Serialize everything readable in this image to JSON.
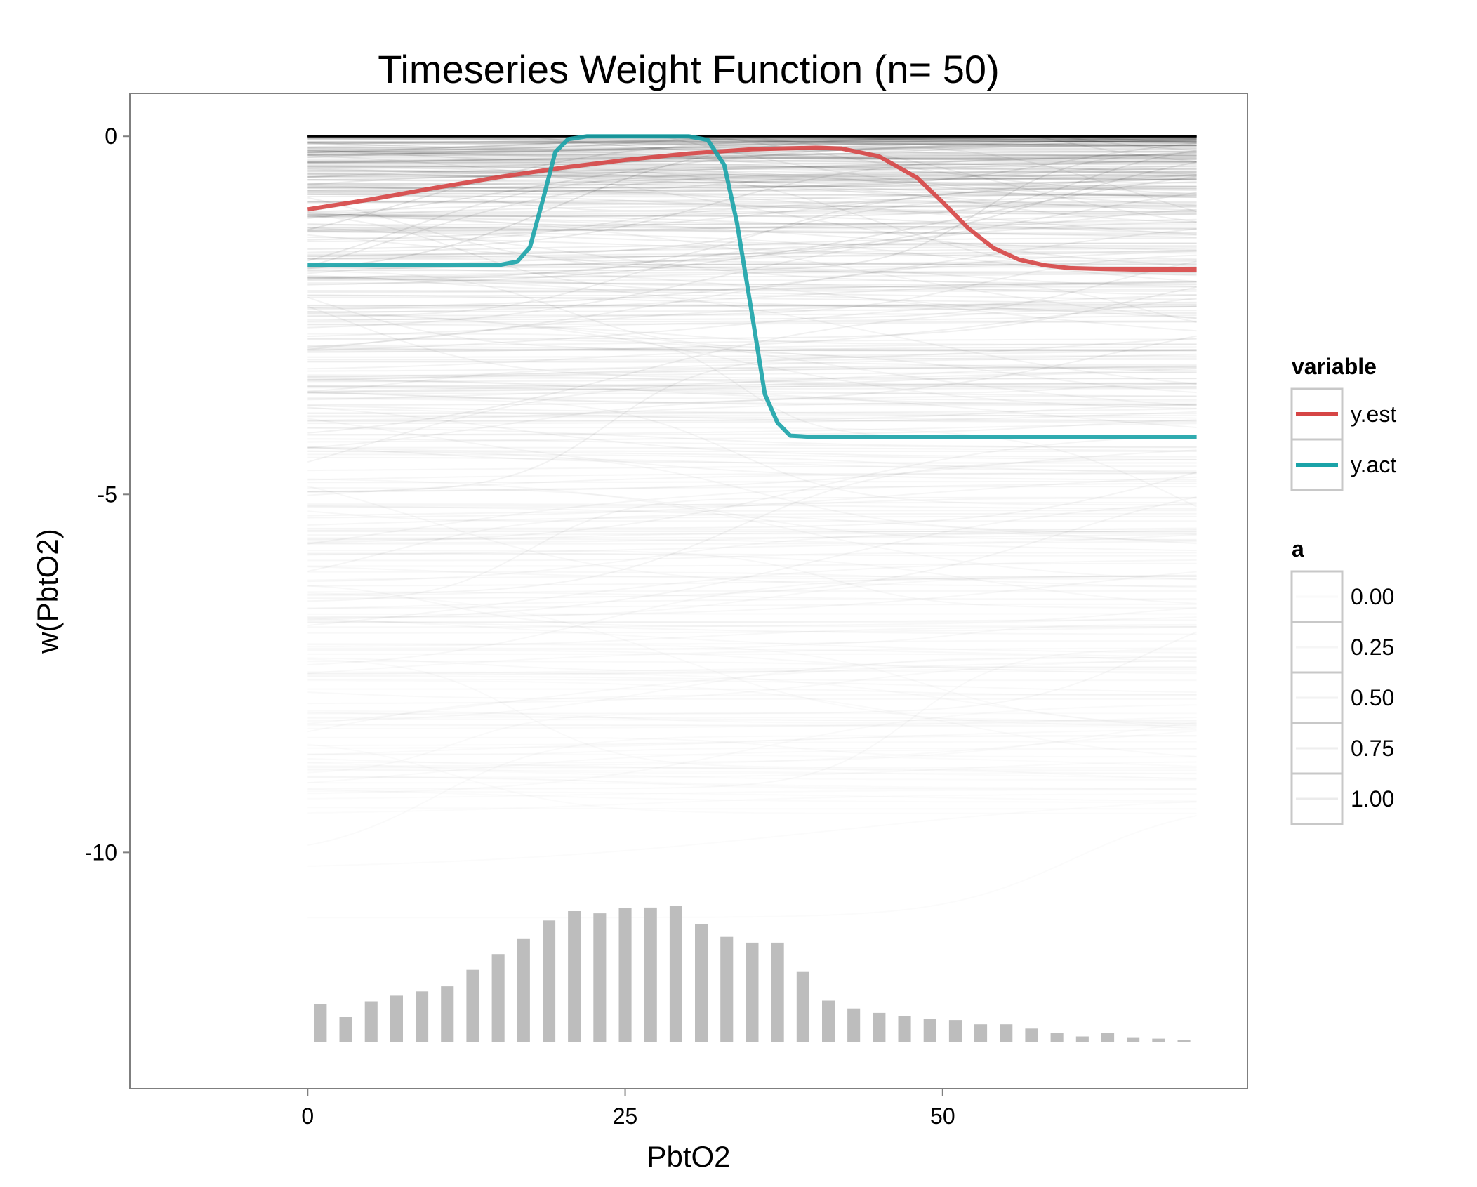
{
  "chart_data": {
    "type": "line",
    "title": "Timeseries Weight Function (n= 50)",
    "xlabel": "PbtO2",
    "ylabel": "w(PbtO2)",
    "xlim": [
      -14,
      74
    ],
    "ylim": [
      -13.3,
      0.6
    ],
    "x_ticks": [
      0,
      25,
      50
    ],
    "x_tick_labels": [
      "0",
      "25",
      "50"
    ],
    "y_ticks": [
      0,
      -5,
      -10
    ],
    "y_tick_labels": [
      "0",
      "-5",
      "-10"
    ],
    "grid": false,
    "legend_position": "right",
    "legends": [
      {
        "title": "variable",
        "entries": [
          {
            "label": "y.est",
            "color": "#d64545"
          },
          {
            "label": "y.act",
            "color": "#1aa3a8"
          }
        ]
      },
      {
        "title": "a",
        "entries": [
          {
            "label": "0.00",
            "alpha": 0.0
          },
          {
            "label": "0.25",
            "alpha": 0.25
          },
          {
            "label": "0.50",
            "alpha": 0.5
          },
          {
            "label": "0.75",
            "alpha": 0.75
          },
          {
            "label": "1.00",
            "alpha": 1.0
          }
        ]
      }
    ],
    "series": [
      {
        "name": "y.est",
        "color": "#d64545",
        "x": [
          0,
          5,
          10,
          15,
          20,
          25,
          30,
          35,
          40,
          42,
          45,
          48,
          50,
          52,
          54,
          56,
          58,
          60,
          62,
          65,
          70
        ],
        "y": [
          -1.02,
          -0.88,
          -0.72,
          -0.57,
          -0.44,
          -0.33,
          -0.24,
          -0.18,
          -0.16,
          -0.17,
          -0.28,
          -0.58,
          -0.92,
          -1.28,
          -1.56,
          -1.72,
          -1.8,
          -1.84,
          -1.85,
          -1.86,
          -1.86
        ]
      },
      {
        "name": "y.act",
        "color": "#1aa3a8",
        "x": [
          0,
          10,
          15,
          16.5,
          17.5,
          18.5,
          19.5,
          20.5,
          22,
          25,
          28,
          30,
          31.5,
          32.8,
          33.8,
          35,
          36,
          37,
          38,
          40,
          50,
          60,
          70
        ],
        "y": [
          -1.8,
          -1.8,
          -1.8,
          -1.75,
          -1.55,
          -0.9,
          -0.22,
          -0.04,
          0,
          0,
          0,
          0,
          -0.05,
          -0.4,
          -1.2,
          -2.5,
          -3.6,
          -4.0,
          -4.18,
          -4.2,
          -4.2,
          -4.2,
          -4.2
        ]
      }
    ],
    "histogram": {
      "x": [
        1,
        3,
        5,
        7,
        9,
        11,
        13,
        15,
        17,
        19,
        21,
        23,
        25,
        27,
        29,
        31,
        33,
        35,
        37,
        39,
        41,
        43,
        45,
        47,
        49,
        51,
        53,
        55,
        57,
        59,
        61,
        63,
        65,
        67,
        69
      ],
      "y": [
        -12.12,
        -12.3,
        -12.08,
        -12.0,
        -11.94,
        -11.87,
        -11.64,
        -11.42,
        -11.2,
        -10.95,
        -10.82,
        -10.85,
        -10.78,
        -10.77,
        -10.75,
        -11.0,
        -11.18,
        -11.26,
        -11.26,
        -11.66,
        -12.07,
        -12.18,
        -12.24,
        -12.29,
        -12.32,
        -12.34,
        -12.4,
        -12.4,
        -12.46,
        -12.52,
        -12.57,
        -12.52,
        -12.59,
        -12.6,
        -12.62
      ]
    },
    "background_lines": {
      "description": "",
      "count": 0
    }
  }
}
